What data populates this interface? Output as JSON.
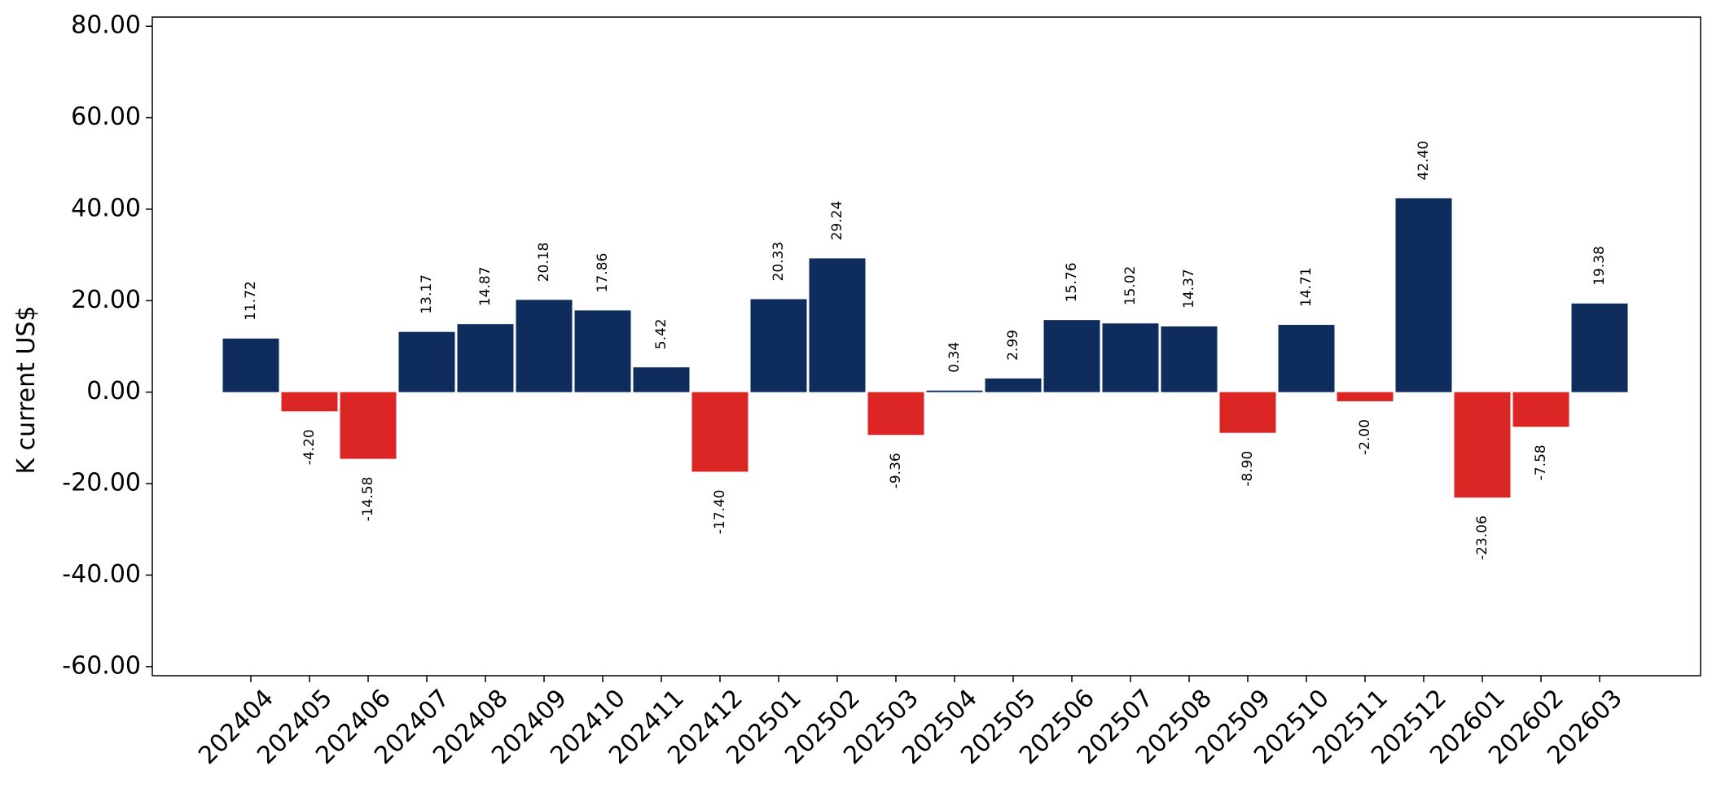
{
  "colors": {
    "positive": "#0e2d5c",
    "negative": "#dc2626"
  },
  "chart_data": {
    "type": "bar",
    "ylabel": "K current US$",
    "ylim": [
      -62,
      82
    ],
    "yticks": [
      80,
      60,
      40,
      20,
      0,
      -20,
      -40,
      -60
    ],
    "ytick_labels": [
      "80.00",
      "60.00",
      "40.00",
      "20.00",
      "0.00",
      "-20.00",
      "-40.00",
      "-60.00"
    ],
    "categories": [
      "202404",
      "202405",
      "202406",
      "202407",
      "202408",
      "202409",
      "202410",
      "202411",
      "202412",
      "202501",
      "202502",
      "202503",
      "202504",
      "202505",
      "202506",
      "202507",
      "202508",
      "202509",
      "202510",
      "202511",
      "202512",
      "202601",
      "202602",
      "202603"
    ],
    "values": [
      11.72,
      -4.2,
      -14.58,
      13.17,
      14.87,
      20.18,
      17.86,
      5.42,
      -17.4,
      20.33,
      29.24,
      -9.36,
      0.34,
      2.99,
      15.76,
      15.02,
      14.37,
      -8.9,
      14.71,
      -2.0,
      42.4,
      -23.06,
      -7.58,
      19.38
    ],
    "value_labels": [
      "11.72",
      "-4.20",
      "-14.58",
      "13.17",
      "14.87",
      "20.18",
      "17.86",
      "5.42",
      "-17.40",
      "20.33",
      "29.24",
      "-9.36",
      "0.34",
      "2.99",
      "15.76",
      "15.02",
      "14.37",
      "-8.90",
      "14.71",
      "-2.00",
      "42.40",
      "-23.06",
      "-7.58",
      "19.38"
    ],
    "grid": false,
    "legend": "none"
  }
}
